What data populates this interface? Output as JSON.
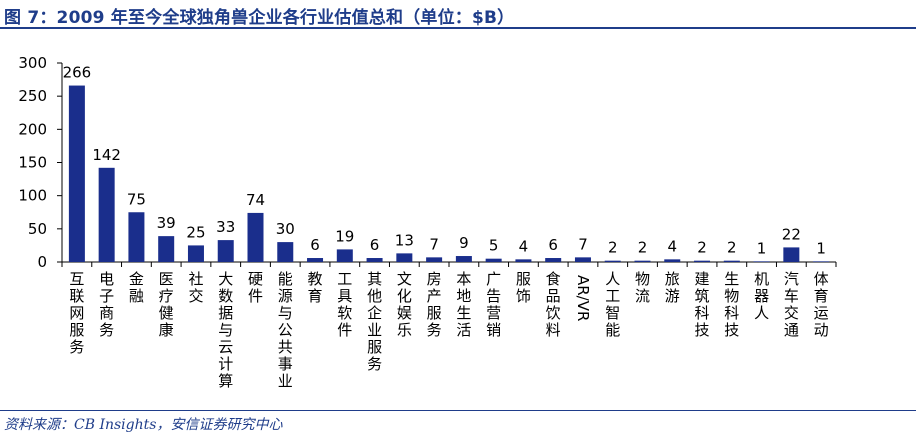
{
  "figure": {
    "title": "图 7：2009 年至今全球独角兽企业各行业估值总和（单位：$B）",
    "source": "资料来源：CB Insights，安信证券研究中心"
  },
  "colors": {
    "bar": "#1a2e8c",
    "accent": "#1f3d8a",
    "axis": "#000000"
  },
  "chart_data": {
    "type": "bar",
    "title": "2009 年至今全球独角兽企业各行业估值总和（单位：$B）",
    "xlabel": "",
    "ylabel": "",
    "ylim": [
      0,
      300
    ],
    "yticks": [
      0,
      50,
      100,
      150,
      200,
      250,
      300
    ],
    "grid": false,
    "categories": [
      "互联网服务",
      "电子商务",
      "金融",
      "医疗健康",
      "社交",
      "大数据与云计算",
      "硬件",
      "能源与公共事业",
      "教育",
      "工具软件",
      "其他企业服务",
      "文化娱乐",
      "房产服务",
      "本地生活",
      "广告营销",
      "服饰",
      "食品饮料",
      "AR/VR",
      "人工智能",
      "物流",
      "旅游",
      "建筑科技",
      "生物科技",
      "机器人",
      "汽车交通",
      "体育运动"
    ],
    "values": [
      266,
      142,
      75,
      39,
      25,
      33,
      74,
      30,
      6,
      19,
      6,
      13,
      7,
      9,
      5,
      4,
      6,
      7,
      2,
      2,
      4,
      2,
      2,
      1,
      22,
      1
    ],
    "series": [
      {
        "name": "估值总和",
        "values": [
          266,
          142,
          75,
          39,
          25,
          33,
          74,
          30,
          6,
          19,
          6,
          13,
          7,
          9,
          5,
          4,
          6,
          7,
          2,
          2,
          4,
          2,
          2,
          1,
          22,
          1
        ]
      }
    ]
  }
}
